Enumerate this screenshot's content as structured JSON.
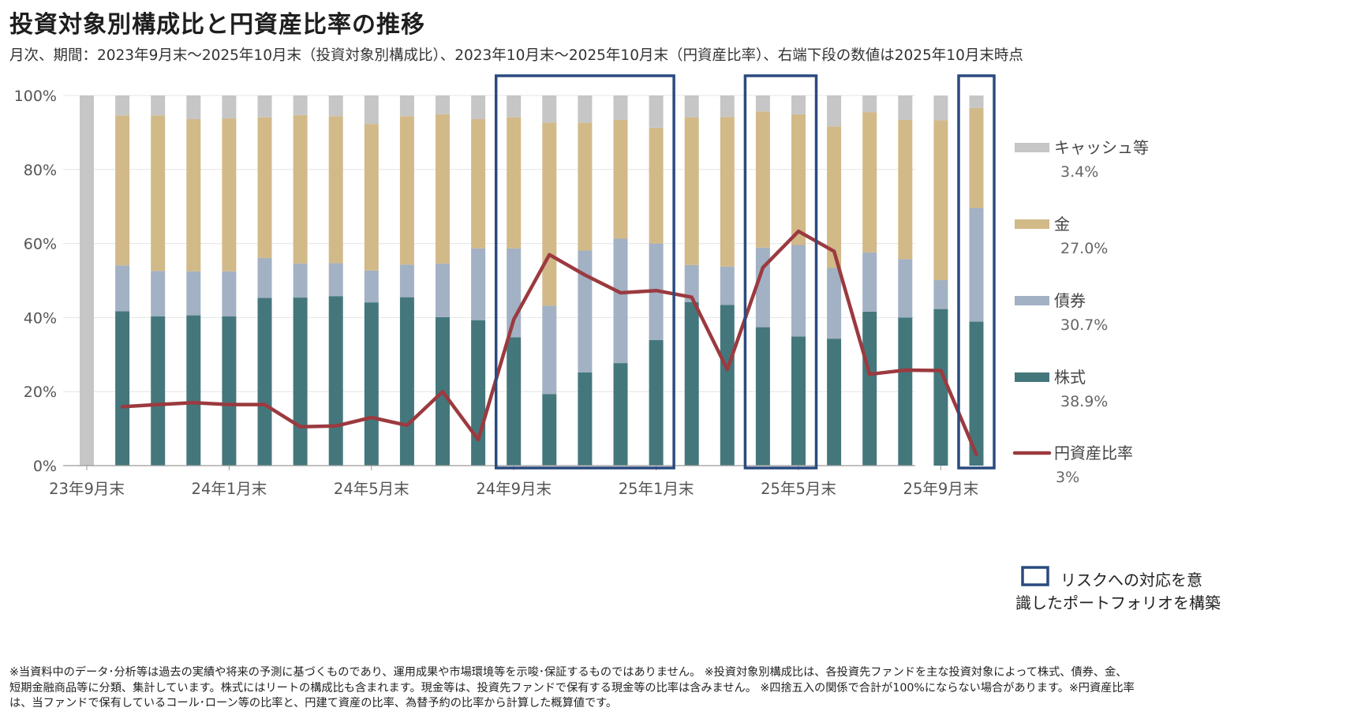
{
  "title": "投資対象別構成比と円資産比率の推移",
  "subtitle": "月次、期間：2023年9月末～2025年10月末（投資対象別構成比）、2023年10月末～2025年10月末（円資産比率）、右端下段の数値は2025年10月末時点",
  "chart_data": {
    "type": "bar",
    "stacked": true,
    "y_axis": {
      "min": 0,
      "max": 100,
      "ticks": [
        0,
        20,
        40,
        60,
        80,
        100
      ],
      "tick_labels": [
        "0%",
        "20%",
        "40%",
        "60%",
        "80%",
        "100%"
      ],
      "gridlines": true
    },
    "x_tick_labels": [
      {
        "index": 0,
        "label": "23年9月末"
      },
      {
        "index": 4,
        "label": "24年1月末"
      },
      {
        "index": 8,
        "label": "24年5月末"
      },
      {
        "index": 12,
        "label": "24年9月末"
      },
      {
        "index": 16,
        "label": "25年1月末"
      },
      {
        "index": 20,
        "label": "25年5月末"
      },
      {
        "index": 24,
        "label": "25年9月末"
      }
    ],
    "categories": [
      "23年9月末",
      "23年10月末",
      "23年11月末",
      "23年12月末",
      "24年1月末",
      "24年2月末",
      "24年3月末",
      "24年4月末",
      "24年5月末",
      "24年6月末",
      "24年7月末",
      "24年8月末",
      "24年9月末",
      "24年10月末",
      "24年11月末",
      "24年12月末",
      "25年1月末",
      "25年2月末",
      "25年3月末",
      "25年4月末",
      "25年5月末",
      "25年6月末",
      "25年7月末",
      "25年8月末",
      "25年9月末",
      "25年10月末"
    ],
    "series": [
      {
        "name": "株式",
        "color": "#44777c",
        "values": [
          0,
          41.7,
          40.3,
          40.6,
          40.3,
          45.3,
          45.4,
          45.8,
          44.1,
          45.5,
          40.1,
          39.3,
          34.7,
          19.3,
          25.2,
          27.7,
          33.9,
          44.2,
          43.4,
          37.4,
          34.9,
          34.3,
          41.6,
          40.0,
          42.3,
          38.9
        ]
      },
      {
        "name": "債券",
        "color": "#a2b1c4",
        "values": [
          0,
          12.4,
          12.3,
          11.9,
          12.2,
          10.8,
          9.2,
          8.9,
          8.6,
          8.8,
          14.5,
          19.4,
          24.0,
          23.9,
          32.9,
          33.6,
          26.1,
          10.0,
          10.4,
          21.5,
          24.7,
          19.1,
          16.0,
          15.8,
          7.8,
          30.7
        ]
      },
      {
        "name": "金",
        "color": "#d2b988",
        "values": [
          0,
          40.5,
          42.0,
          41.1,
          41.3,
          38.0,
          40.1,
          39.7,
          39.6,
          40.1,
          40.3,
          34.9,
          35.4,
          49.5,
          34.6,
          32.1,
          31.3,
          39.9,
          40.4,
          36.8,
          35.3,
          38.2,
          37.9,
          37.6,
          43.2,
          27.0
        ]
      },
      {
        "name": "キャッシュ等",
        "color": "#c6c6c6",
        "values": [
          100,
          5.4,
          5.4,
          6.4,
          6.2,
          5.9,
          5.3,
          5.6,
          7.7,
          5.6,
          5.1,
          6.4,
          5.9,
          7.3,
          7.3,
          6.6,
          8.7,
          5.9,
          5.8,
          4.3,
          5.1,
          8.4,
          4.5,
          6.6,
          6.7,
          3.4
        ]
      }
    ],
    "line": {
      "name": "円資産比率",
      "color": "#9b3a3f",
      "start_index": 1,
      "values": [
        15.9,
        16.5,
        17.0,
        16.5,
        16.5,
        10.5,
        10.7,
        13.0,
        10.9,
        20.0,
        7.0,
        39.5,
        57.0,
        51.5,
        46.7,
        47.3,
        45.5,
        26.0,
        53.5,
        63.3,
        57.9,
        24.7,
        25.8,
        25.7,
        3.0
      ]
    },
    "legend": [
      {
        "name": "キャッシュ等",
        "value": "3.4%",
        "kind": "bar",
        "color": "#c6c6c6"
      },
      {
        "name": "金",
        "value": "27.0%",
        "kind": "bar",
        "color": "#d2b988"
      },
      {
        "name": "債券",
        "value": "30.7%",
        "kind": "bar",
        "color": "#a2b1c4"
      },
      {
        "name": "株式",
        "value": "38.9%",
        "kind": "bar",
        "color": "#44777c"
      },
      {
        "name": "円資産比率",
        "value": "3%",
        "kind": "line",
        "color": "#9b3a3f"
      }
    ],
    "highlight_groups": [
      {
        "start": 12,
        "end": 16
      },
      {
        "start": 19,
        "end": 20
      },
      {
        "start": 25,
        "end": 25
      }
    ],
    "highlight_color": "#2a4a7f",
    "highlight_legend": [
      "リスクへの対応を意",
      "識したポートフォリオを構築"
    ]
  },
  "footnote": [
    "※当資料中のデータ･分析等は過去の実績や将来の予測に基づくものであり、運用成果や市場環境等を示唆･保証するものではありません。 ※投資対象別構成比は、各投資先ファンドを主な投資対象によって株式、債券、金、",
    "短期金融商品等に分類、集計しています。株式にはリートの構成比も含まれます。現金等は、投資先ファンドで保有する現金等の比率は含みません。 ※四捨五入の関係で合計が100%にならない場合があります。※円資産比率",
    "は、当ファンドで保有しているコール･ローン等の比率と、円建て資産の比率、為替予約の比率から計算した概算値です。"
  ]
}
